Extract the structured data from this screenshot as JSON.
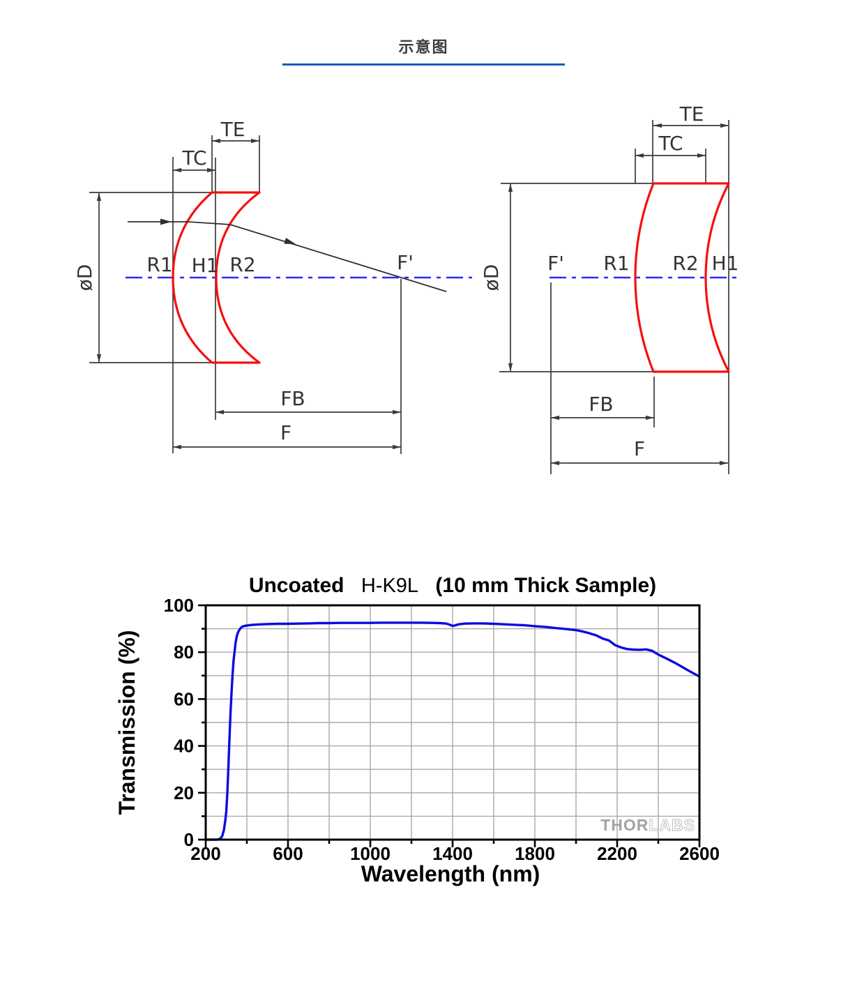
{
  "header": {
    "title": "示意图"
  },
  "diagram": {
    "labels": {
      "te": "TE",
      "tc": "TC",
      "r1": "R1",
      "h1": "H1",
      "r2": "R2",
      "f_prime": "F'",
      "phi_d": "øD",
      "fb": "FB",
      "f": "F"
    },
    "lens_color": "#f50f0f",
    "axis_color": "#2b2bf0"
  },
  "chart_data": {
    "type": "line",
    "title": {
      "prefix": "Uncoated",
      "material": "H-K9L",
      "suffix": "(10 mm Thick Sample)"
    },
    "xlabel": "Wavelength (nm)",
    "ylabel": "Transmission (%)",
    "xlim": [
      200,
      2600
    ],
    "ylim": [
      0,
      100
    ],
    "x_major_ticks": [
      200,
      600,
      1000,
      1400,
      1800,
      2200,
      2600
    ],
    "x_minor_ticks": [
      400,
      800,
      1200,
      1600,
      2000,
      2400
    ],
    "y_major_ticks": [
      0,
      20,
      40,
      60,
      80,
      100
    ],
    "y_minor_ticks": [
      10,
      30,
      50,
      70,
      90
    ],
    "grid_step_x": 200,
    "grid_step_y": 10,
    "grid": true,
    "legend": "none",
    "line_color": "#0b0be0",
    "watermark": {
      "thor": "THOR",
      "labs": "LABS"
    },
    "series": [
      {
        "name": "Uncoated H-K9L (10 mm Thick Sample)",
        "x": [
          200,
          255,
          265,
          272,
          280,
          288,
          295,
          300,
          305,
          310,
          315,
          320,
          325,
          330,
          335,
          340,
          345,
          350,
          355,
          360,
          370,
          380,
          395,
          420,
          450,
          500,
          550,
          600,
          650,
          700,
          750,
          800,
          850,
          900,
          950,
          1000,
          1050,
          1100,
          1150,
          1200,
          1250,
          1300,
          1340,
          1370,
          1390,
          1400,
          1410,
          1430,
          1460,
          1500,
          1550,
          1600,
          1650,
          1700,
          1750,
          1800,
          1850,
          1900,
          1950,
          2000,
          2030,
          2060,
          2100,
          2130,
          2160,
          2190,
          2220,
          2250,
          2280,
          2310,
          2340,
          2370,
          2400,
          2440,
          2480,
          2520,
          2560,
          2600
        ],
        "y": [
          0,
          0,
          0.2,
          0.5,
          1.5,
          4,
          8,
          12,
          20,
          30,
          42,
          53,
          62,
          70,
          76,
          80,
          84,
          86.5,
          88,
          89,
          90.3,
          91,
          91.3,
          91.6,
          91.8,
          92,
          92.1,
          92.1,
          92.2,
          92.3,
          92.4,
          92.4,
          92.5,
          92.5,
          92.5,
          92.5,
          92.6,
          92.6,
          92.6,
          92.6,
          92.6,
          92.5,
          92.4,
          92.2,
          91.6,
          91.2,
          91.4,
          91.9,
          92.2,
          92.3,
          92.3,
          92.1,
          91.9,
          91.7,
          91.5,
          91.1,
          90.8,
          90.3,
          89.9,
          89.4,
          88.9,
          88.2,
          87.1,
          85.8,
          85,
          83,
          82,
          81.3,
          81.1,
          81,
          81.2,
          80.6,
          79,
          77.3,
          75.5,
          73.5,
          71.5,
          69.6
        ]
      }
    ]
  }
}
